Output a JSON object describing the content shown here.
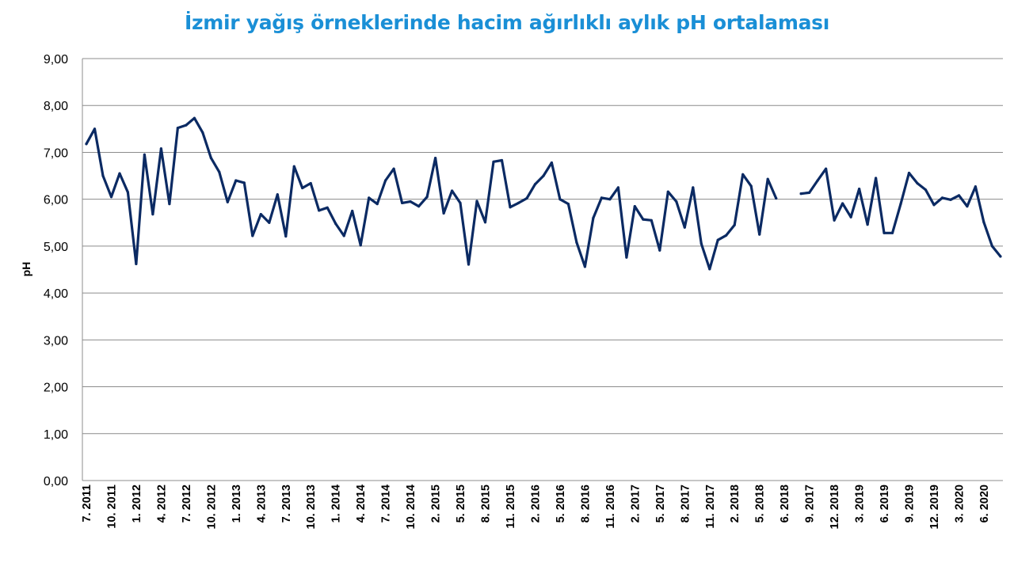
{
  "chart_data": {
    "type": "line",
    "title": "İzmir yağış örneklerinde hacim ağırlıklı aylık pH ortalaması",
    "xlabel": "",
    "ylabel": "pH",
    "ylim": [
      0,
      9
    ],
    "yticks": [
      "0,00",
      "1,00",
      "2,00",
      "3,00",
      "4,00",
      "5,00",
      "6,00",
      "7,00",
      "8,00",
      "9,00"
    ],
    "grid": true,
    "x_tick_labels": [
      "7. 2011",
      "10. 2011",
      "1. 2012",
      "4. 2012",
      "7. 2012",
      "10. 2012",
      "1. 2013",
      "4. 2013",
      "7. 2013",
      "10. 2013",
      "1. 2014",
      "4. 2014",
      "7. 2014",
      "10. 2014",
      "2. 2015",
      "5. 2015",
      "8. 2015",
      "11. 2015",
      "2. 2016",
      "5. 2016",
      "8. 2016",
      "11. 2016",
      "2. 2017",
      "5. 2017",
      "8. 2017",
      "11. 2017",
      "2. 2018",
      "5. 2018",
      "6. 2018",
      "9. 2017",
      "12. 2018",
      "3. 2019",
      "6. 2019",
      "9. 2019",
      "12. 2019",
      "3. 2020",
      "6. 2020"
    ],
    "series": [
      {
        "color": "#0b2a63",
        "values": [
          7.18,
          7.5,
          6.5,
          6.05,
          6.55,
          6.15,
          4.62,
          6.95,
          5.68,
          7.08,
          5.9,
          7.52,
          7.58,
          7.73,
          7.42,
          6.88,
          6.58,
          5.94,
          6.4,
          6.35,
          5.22,
          5.68,
          5.5,
          6.1,
          5.21,
          6.7,
          6.24,
          6.34,
          5.76,
          5.82,
          5.48,
          5.22,
          5.75,
          5.02,
          6.03,
          5.9,
          6.4,
          6.65,
          5.92,
          5.95,
          5.85,
          6.05,
          6.88,
          5.7,
          6.18,
          5.92,
          4.61,
          5.96,
          5.51,
          6.8,
          6.83,
          5.83,
          5.92,
          6.02,
          6.32,
          6.5,
          6.78,
          6.0,
          5.9,
          5.08,
          4.56,
          5.6,
          6.03,
          6.0,
          6.25,
          4.76,
          5.85,
          5.57,
          5.55,
          4.91,
          6.16,
          5.95,
          5.4,
          6.25,
          5.05,
          4.51,
          5.13,
          5.23,
          5.45,
          6.53,
          6.28,
          5.25,
          6.43,
          6.02,
          null,
          null,
          6.12,
          6.14,
          6.4,
          6.65,
          5.55,
          5.91,
          5.62,
          6.22,
          5.46,
          6.45,
          5.28,
          5.28,
          5.9,
          6.56,
          6.34,
          6.2,
          5.88,
          6.03,
          5.99,
          6.08,
          5.85,
          6.27,
          5.51,
          5.0,
          4.78
        ]
      }
    ]
  }
}
